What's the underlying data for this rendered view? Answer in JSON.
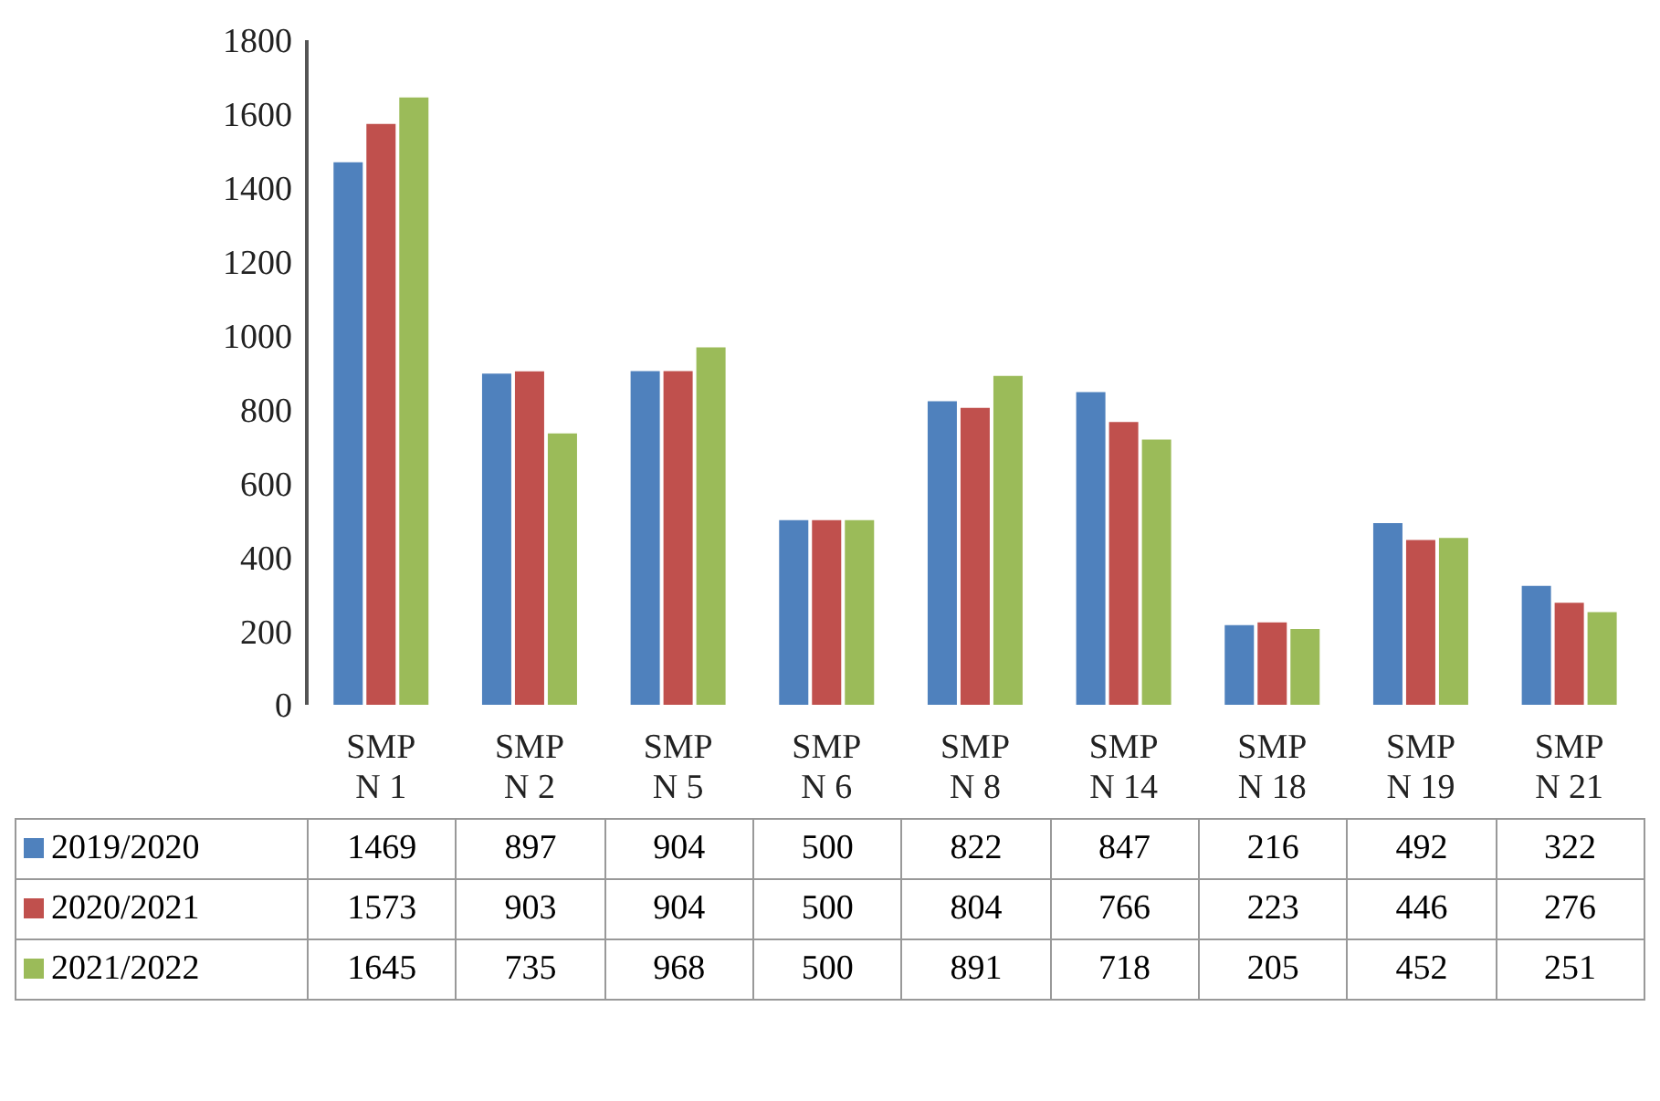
{
  "chart_data": {
    "type": "bar",
    "categories": [
      "SMP N 1",
      "SMP N 2",
      "SMP N 5",
      "SMP N 6",
      "SMP N 8",
      "SMP N 14",
      "SMP N 18",
      "SMP N 19",
      "SMP N 21"
    ],
    "series": [
      {
        "name": "2019/2020",
        "color": "#4f81bd",
        "values": [
          1469,
          897,
          904,
          500,
          822,
          847,
          216,
          492,
          322
        ]
      },
      {
        "name": "2020/2021",
        "color": "#c0504d",
        "values": [
          1573,
          903,
          904,
          500,
          804,
          766,
          223,
          446,
          276
        ]
      },
      {
        "name": "2021/2022",
        "color": "#9bbb59",
        "values": [
          1645,
          735,
          968,
          500,
          891,
          718,
          205,
          452,
          251
        ]
      }
    ],
    "ylim": [
      0,
      1800
    ],
    "yticks": [
      0,
      200,
      400,
      600,
      800,
      1000,
      1200,
      1400,
      1600,
      1800
    ],
    "legend": "bottom",
    "data_labels": true
  }
}
